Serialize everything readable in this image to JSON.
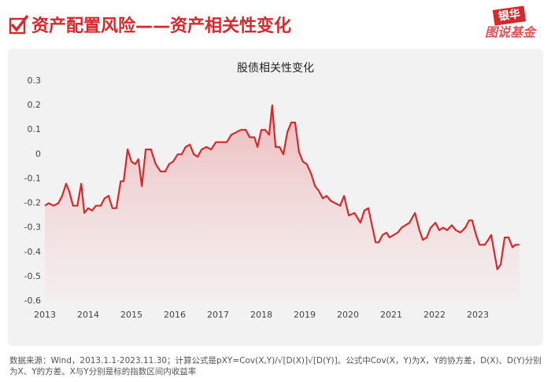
{
  "header": {
    "title": "资产配置风险——资产相关性变化",
    "logo_top": "银华",
    "logo_bottom": "图说基金"
  },
  "chart_data": {
    "type": "area-line",
    "title": "股债相关性变化",
    "color": "#d42a2e",
    "x": [
      2013.0,
      2013.09,
      2013.2,
      2013.31,
      2013.4,
      2013.49,
      2013.56,
      2013.65,
      2013.75,
      2013.84,
      2013.91,
      2014.0,
      2014.09,
      2014.18,
      2014.29,
      2014.38,
      2014.47,
      2014.56,
      2014.65,
      2014.75,
      2014.82,
      2014.91,
      2015.0,
      2015.09,
      2015.16,
      2015.24,
      2015.33,
      2015.45,
      2015.56,
      2015.67,
      2015.78,
      2015.87,
      2015.96,
      2016.07,
      2016.16,
      2016.25,
      2016.35,
      2016.44,
      2016.53,
      2016.62,
      2016.73,
      2016.84,
      2016.95,
      2017.09,
      2017.2,
      2017.31,
      2017.42,
      2017.53,
      2017.64,
      2017.73,
      2017.84,
      2017.91,
      2018.0,
      2018.09,
      2018.18,
      2018.25,
      2018.33,
      2018.42,
      2018.51,
      2018.6,
      2018.69,
      2018.78,
      2018.87,
      2018.96,
      2019.05,
      2019.15,
      2019.24,
      2019.33,
      2019.42,
      2019.51,
      2019.6,
      2019.71,
      2019.82,
      2019.91,
      2020.02,
      2020.15,
      2020.29,
      2020.38,
      2020.47,
      2020.64,
      2020.71,
      2020.8,
      2020.89,
      2020.96,
      2021.15,
      2021.24,
      2021.33,
      2021.42,
      2021.55,
      2021.65,
      2021.73,
      2021.82,
      2021.91,
      2022.02,
      2022.11,
      2022.2,
      2022.29,
      2022.4,
      2022.49,
      2022.6,
      2022.71,
      2022.8,
      2022.87,
      2022.96,
      2023.04,
      2023.16,
      2023.24,
      2023.31,
      2023.38,
      2023.45,
      2023.53,
      2023.62,
      2023.71,
      2023.8,
      2023.87,
      2023.96
    ],
    "values": [
      -0.21,
      -0.2,
      -0.21,
      -0.2,
      -0.17,
      -0.12,
      -0.15,
      -0.21,
      -0.21,
      -0.12,
      -0.24,
      -0.22,
      -0.23,
      -0.21,
      -0.21,
      -0.18,
      -0.17,
      -0.22,
      -0.22,
      -0.11,
      -0.11,
      0.02,
      -0.03,
      -0.04,
      -0.02,
      -0.13,
      0.02,
      0.02,
      -0.04,
      -0.07,
      -0.07,
      -0.04,
      -0.03,
      0.0,
      0.0,
      0.03,
      0.04,
      0.0,
      -0.01,
      0.02,
      0.03,
      0.02,
      0.05,
      0.05,
      0.05,
      0.08,
      0.09,
      0.1,
      0.1,
      0.07,
      0.07,
      0.03,
      0.1,
      0.1,
      0.08,
      0.2,
      0.03,
      0.03,
      0.0,
      0.09,
      0.13,
      0.13,
      0.01,
      -0.03,
      -0.04,
      -0.08,
      -0.13,
      -0.15,
      -0.18,
      -0.17,
      -0.19,
      -0.2,
      -0.21,
      -0.17,
      -0.25,
      -0.24,
      -0.28,
      -0.23,
      -0.22,
      -0.36,
      -0.36,
      -0.33,
      -0.32,
      -0.34,
      -0.32,
      -0.3,
      -0.29,
      -0.28,
      -0.24,
      -0.31,
      -0.35,
      -0.34,
      -0.3,
      -0.28,
      -0.31,
      -0.3,
      -0.31,
      -0.29,
      -0.31,
      -0.32,
      -0.3,
      -0.27,
      -0.27,
      -0.33,
      -0.37,
      -0.37,
      -0.35,
      -0.33,
      -0.4,
      -0.47,
      -0.45,
      -0.34,
      -0.34,
      -0.38,
      -0.37,
      -0.37
    ],
    "xlim": [
      2013,
      2024
    ],
    "xticks": [
      2013,
      2014,
      2015,
      2016,
      2017,
      2018,
      2019,
      2020,
      2021,
      2022,
      2023
    ],
    "ylim": [
      -0.6,
      0.3
    ],
    "yticks": [
      0.3,
      0.2,
      0.1,
      0,
      -0.1,
      -0.2,
      -0.3,
      -0.4,
      -0.5,
      -0.6
    ],
    "grid": false
  },
  "footer": {
    "note": "数据来源：Wind，2013.1.1-2023.11.30；计算公式是pXY=Cov(X,Y)/√[D(X)]√[D(Y)]。公式中Cov(X，Y)为X，Y的协方差，D(X)、D(Y)分别为X、Y的方差。X与Y分别是标的指数区间内收益率"
  }
}
